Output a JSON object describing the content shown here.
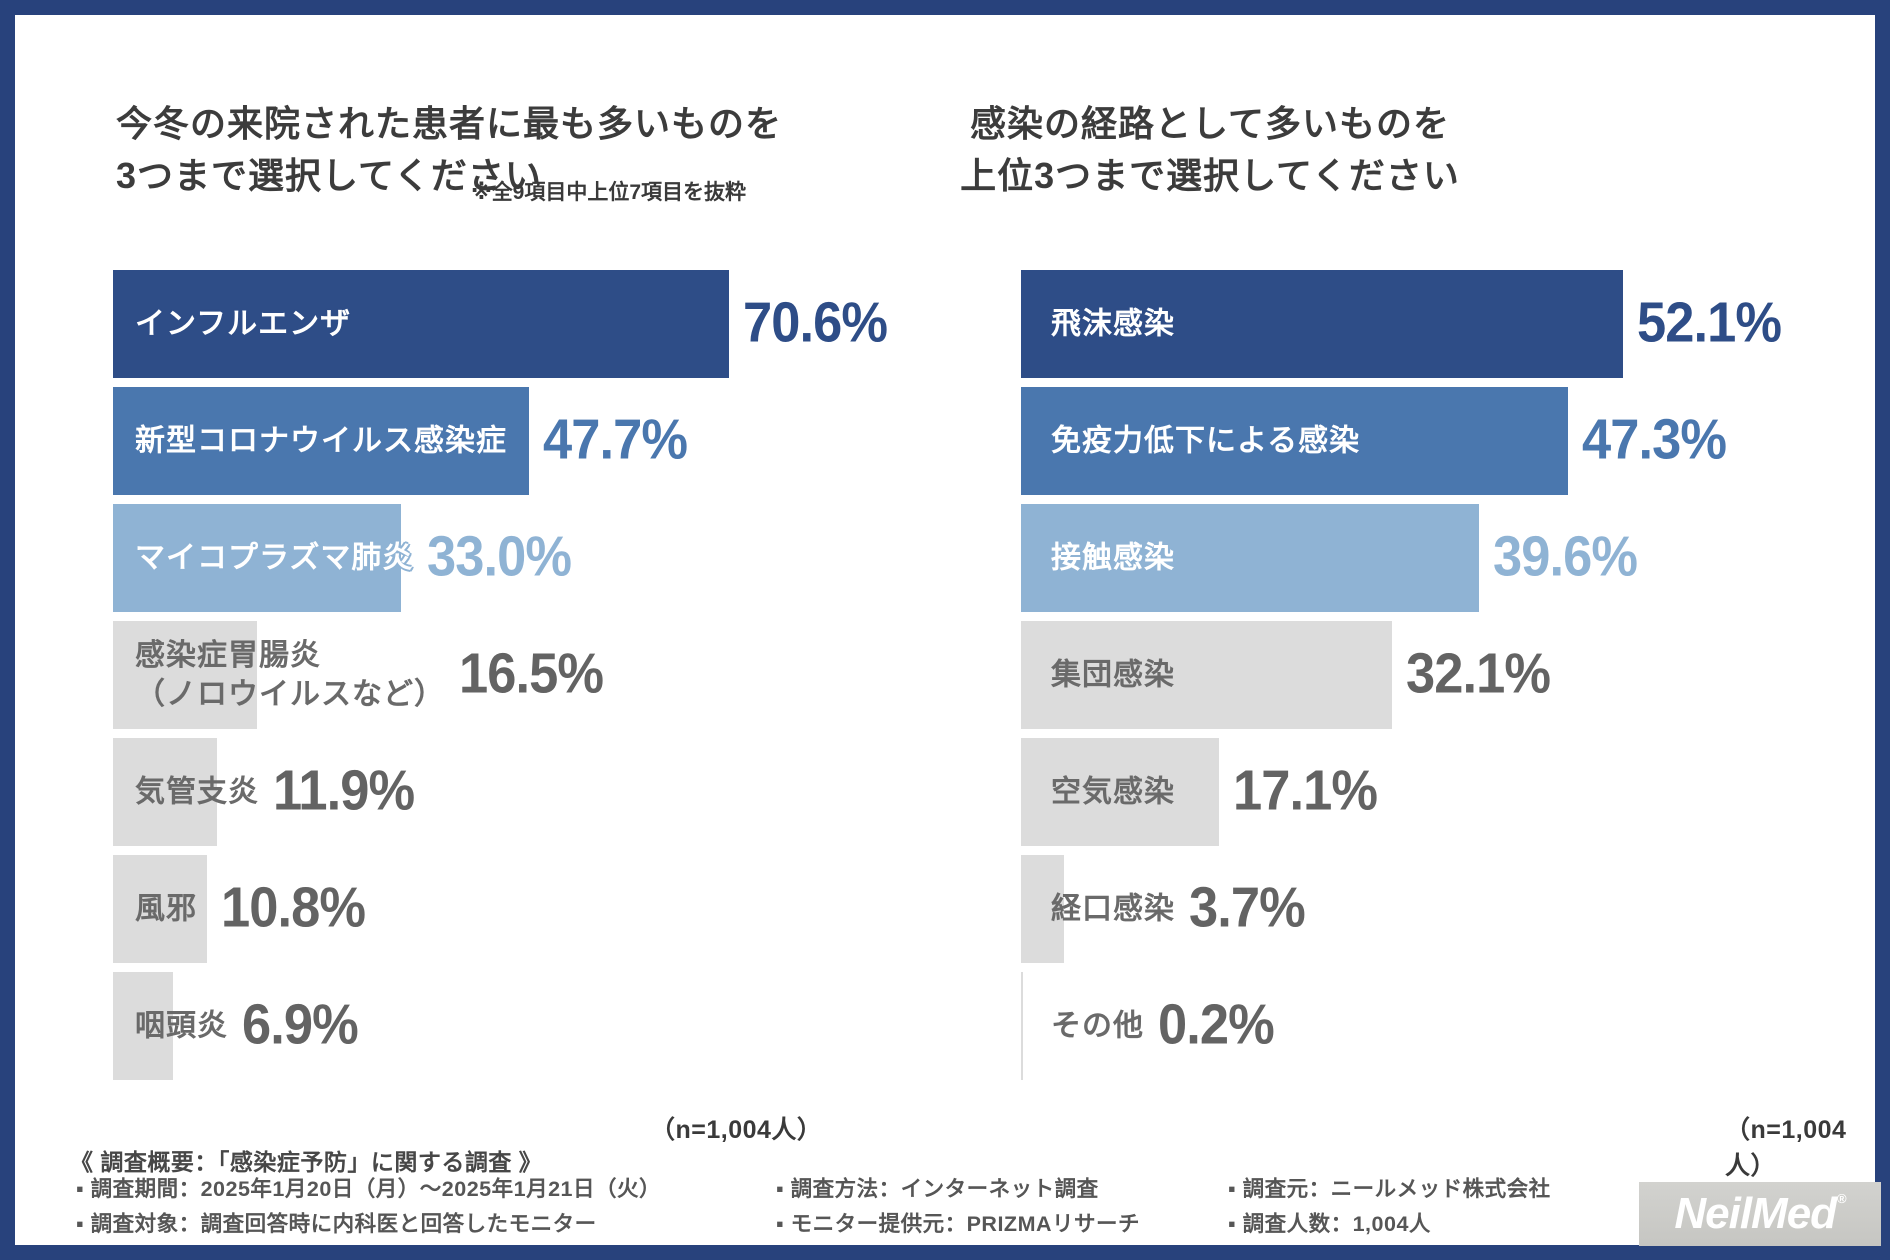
{
  "palette": {
    "frame_border": "#28427c",
    "dark_blue": "#2e4d87",
    "mid_blue": "#4a77ae",
    "light_blue": "#8fb3d4",
    "gray_bar": "#dcdcdc",
    "gray_text": "#6a6a6a",
    "pct_gray": "#636363",
    "title_text": "#3c3c3c"
  },
  "chart_data": [
    {
      "type": "bar",
      "orientation": "horizontal",
      "title": "今冬の来院された患者に最も多いものを3つまで選択してください",
      "title_lines": [
        "今冬の来院された患者に最も多いものを",
        "3つまで選択してください"
      ],
      "note": "※全9項目中上位7項目を抜粋",
      "n_label": "（n=1,004人）",
      "xlim": [
        0,
        80
      ],
      "unit": "%",
      "categories": [
        "インフルエンザ",
        "新型コロナウイルス感染症",
        "マイコプラズマ肺炎",
        "感染症胃腸炎\n（ノロウイルスなど）",
        "気管支炎",
        "風邪",
        "咽頭炎"
      ],
      "values": [
        70.6,
        47.7,
        33.0,
        16.5,
        11.9,
        10.8,
        6.9
      ],
      "values_display": [
        "70.6%",
        "47.7%",
        "33.0%",
        "16.5%",
        "11.9%",
        "10.8%",
        "6.9%"
      ],
      "bar_colors": [
        "#2e4d87",
        "#4a77ae",
        "#8fb3d4",
        "#dcdcdc",
        "#dcdcdc",
        "#dcdcdc",
        "#dcdcdc"
      ],
      "label_colors": [
        "#ffffff",
        "#ffffff",
        "#ffffff",
        "#6a6a6a",
        "#6a6a6a",
        "#6a6a6a",
        "#6a6a6a"
      ],
      "pct_colors": [
        "#2e4d87",
        "#4a77ae",
        "#8fb3d4",
        "#636363",
        "#636363",
        "#636363",
        "#636363"
      ]
    },
    {
      "type": "bar",
      "orientation": "horizontal",
      "title": "感染の経路として多いものを上位3つまで選択してください",
      "title_lines": [
        "感染の経路として多いものを",
        "上位3つまで選択してください"
      ],
      "note": "",
      "n_label": "（n=1,004人）",
      "xlim": [
        0,
        60
      ],
      "unit": "%",
      "categories": [
        "飛沫感染",
        "免疫力低下による感染",
        "接触感染",
        "集団感染",
        "空気感染",
        "経口感染",
        "その他"
      ],
      "values": [
        52.1,
        47.3,
        39.6,
        32.1,
        17.1,
        3.7,
        0.2
      ],
      "values_display": [
        "52.1%",
        "47.3%",
        "39.6%",
        "32.1%",
        "17.1%",
        "3.7%",
        "0.2%"
      ],
      "bar_colors": [
        "#2e4d87",
        "#4a77ae",
        "#8fb3d4",
        "#dcdcdc",
        "#dcdcdc",
        "#dcdcdc",
        "#dcdcdc"
      ],
      "label_colors": [
        "#ffffff",
        "#ffffff",
        "#ffffff",
        "#6a6a6a",
        "#6a6a6a",
        "#6a6a6a",
        "#6a6a6a"
      ],
      "pct_colors": [
        "#2e4d87",
        "#4a77ae",
        "#8fb3d4",
        "#636363",
        "#636363",
        "#636363",
        "#636363"
      ]
    }
  ],
  "footer": {
    "heading": "《 調査概要：「感染症予防」に関する調査 》",
    "columns": [
      [
        "▪ 調査期間：2025年1月20日（月）～2025年1月21日（火）",
        "▪ 調査対象：調査回答時に内科医と回答したモニター"
      ],
      [
        "▪ 調査方法：インターネット調査",
        "▪ モニター提供元：PRIZMAリサーチ"
      ],
      [
        "▪ 調査元：ニールメッド株式会社",
        "▪ 調査人数：1,004人"
      ]
    ],
    "logo_text": "NeilMed",
    "logo_reg": "®"
  }
}
